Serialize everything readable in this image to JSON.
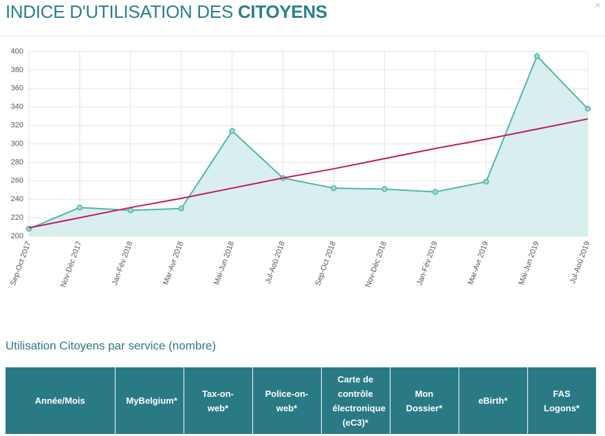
{
  "header": {
    "title": "INDICE D'UTILISATION DES",
    "title_bold": "CITOYENS",
    "close": "×"
  },
  "chart_data": {
    "type": "line",
    "categories": [
      "Sep-Oct 2017",
      "Nov-Déc 2017",
      "Jan-Fév 2018",
      "Mar-Avr 2018",
      "Mai-Jun 2018",
      "Jul-Aoû 2018",
      "Sep-Oct 2018",
      "Nov-Déc 2018",
      "Jan-Fév 2019",
      "Mar-Avr 2019",
      "Mai-Jun 2019",
      "Jul-Aoû 2019"
    ],
    "series": [
      {
        "color": "#4db6ac",
        "fill": "#d5ecec",
        "values": [
          208,
          231,
          228,
          230,
          314,
          263,
          252,
          251,
          248,
          259,
          395,
          338
        ]
      },
      {
        "color": "#c2185b",
        "values": [
          209,
          220,
          231,
          241,
          252,
          263,
          273,
          284,
          295,
          305,
          316,
          327
        ]
      }
    ],
    "ylim": [
      200,
      400
    ],
    "yticks": [
      200,
      220,
      240,
      260,
      280,
      300,
      320,
      340,
      360,
      380,
      400
    ],
    "grid": true
  },
  "section": {
    "title": "Utilisation Citoyens par service (nombre)"
  },
  "table": {
    "columns": [
      "Année/Mois",
      "MyBelgium*",
      "Tax-on-web*",
      "Police-on-web*",
      "Carte de contrôle électronique (eC3)*",
      "Mon Dossier*",
      "eBirth*",
      "FAS Logons*"
    ]
  }
}
